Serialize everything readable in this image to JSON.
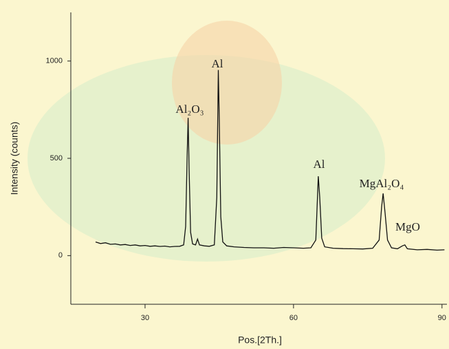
{
  "chart_data": {
    "type": "line",
    "xlabel": "Pos.[2Th.]",
    "ylabel": "Intensity (counts)",
    "color": "#111111",
    "xlim": [
      15,
      91
    ],
    "xticks": [
      30,
      60,
      90
    ],
    "ylim": [
      -250,
      1250
    ],
    "yticks": [
      0,
      500,
      1000
    ],
    "x": [
      20,
      21,
      22,
      23,
      24,
      25,
      26,
      27,
      28,
      29,
      30,
      31,
      32,
      33,
      34,
      35,
      36,
      37,
      37.8,
      38.2,
      38.5,
      38.7,
      38.9,
      39.2,
      39.6,
      40.2,
      40.6,
      41,
      42,
      43,
      44,
      44.5,
      44.8,
      45.0,
      45.3,
      45.7,
      46.5,
      48,
      50,
      52,
      54,
      56,
      58,
      60,
      62,
      63.5,
      64.5,
      65.0,
      65.3,
      65.7,
      66.3,
      68,
      70,
      72,
      74,
      76,
      77.3,
      77.8,
      78.1,
      78.5,
      79,
      79.8,
      81,
      82,
      82.5,
      83,
      85,
      87,
      89,
      90.5
    ],
    "values": [
      70,
      62,
      66,
      58,
      60,
      55,
      57,
      52,
      55,
      50,
      52,
      48,
      50,
      47,
      49,
      45,
      47,
      48,
      55,
      150,
      500,
      708,
      450,
      120,
      60,
      55,
      85,
      55,
      50,
      48,
      55,
      300,
      954,
      700,
      200,
      70,
      50,
      45,
      42,
      40,
      40,
      38,
      42,
      40,
      38,
      40,
      80,
      408,
      300,
      90,
      45,
      38,
      36,
      35,
      34,
      38,
      80,
      250,
      320,
      220,
      80,
      40,
      35,
      50,
      55,
      35,
      30,
      32,
      28,
      30
    ],
    "annotations": [
      "Al₂O₃",
      "Al",
      "Al",
      "MgAl₂O₄",
      "MgO"
    ]
  }
}
